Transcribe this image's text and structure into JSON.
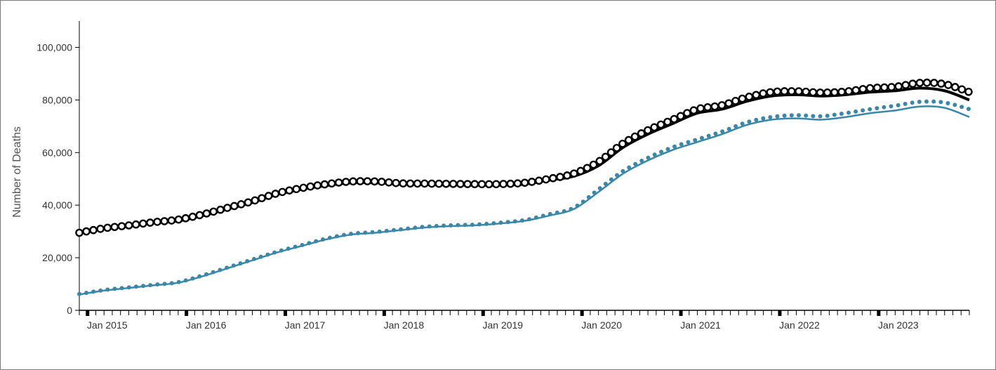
{
  "chart_data": {
    "type": "line",
    "title": "",
    "xlabel": "",
    "ylabel": "Number of Deaths",
    "ylim": [
      0,
      110000
    ],
    "xlim": [
      "2014-12",
      "2023-12"
    ],
    "y_ticks": [
      0,
      20000,
      40000,
      60000,
      80000,
      100000
    ],
    "y_tick_labels": [
      "0",
      "20,000",
      "40,000",
      "60,000",
      "80,000",
      "100,000"
    ],
    "x_ticks": [
      "2015-01",
      "2016-01",
      "2017-01",
      "2018-01",
      "2019-01",
      "2020-01",
      "2021-01",
      "2022-01",
      "2023-01"
    ],
    "x_tick_labels": [
      "Jan 2015",
      "Jan 2016",
      "Jan 2017",
      "Jan 2018",
      "Jan 2019",
      "Jan 2020",
      "Jan 2021",
      "Jan 2022",
      "Jan 2023"
    ],
    "grid": false,
    "legend": "none",
    "x": [
      "2014-12",
      "2015-03",
      "2015-06",
      "2015-09",
      "2015-12",
      "2016-03",
      "2016-06",
      "2016-09",
      "2016-12",
      "2017-03",
      "2017-06",
      "2017-09",
      "2017-12",
      "2018-03",
      "2018-06",
      "2018-09",
      "2018-12",
      "2019-03",
      "2019-06",
      "2019-09",
      "2019-12",
      "2020-03",
      "2020-06",
      "2020-09",
      "2020-12",
      "2021-03",
      "2021-06",
      "2021-09",
      "2021-12",
      "2022-03",
      "2022-06",
      "2022-09",
      "2022-12",
      "2023-03",
      "2023-06",
      "2023-09",
      "2023-12"
    ],
    "series": [
      {
        "color": "#000000",
        "style": "solid",
        "values": [
          29500,
          31000,
          32000,
          33200,
          34000,
          36000,
          38500,
          41000,
          44000,
          46000,
          47500,
          48500,
          48500,
          48000,
          47800,
          47700,
          47600,
          47600,
          48000,
          49500,
          51000,
          55000,
          62000,
          67000,
          71000,
          75000,
          76500,
          79500,
          81500,
          82000,
          81500,
          82000,
          83000,
          83500,
          84500,
          83500,
          80000
        ]
      },
      {
        "color": "#000000",
        "style": "open-circles",
        "values": [
          29500,
          31200,
          32300,
          33500,
          34500,
          36500,
          39000,
          41500,
          44500,
          46500,
          48000,
          49000,
          49000,
          48300,
          48200,
          48100,
          48000,
          48000,
          48500,
          50000,
          52000,
          56500,
          63500,
          68500,
          72500,
          76500,
          78000,
          81000,
          83000,
          83300,
          82800,
          83200,
          84500,
          85000,
          86500,
          86000,
          83000
        ]
      },
      {
        "color": "#3a87a8",
        "style": "solid",
        "values": [
          6000,
          7500,
          8500,
          9500,
          10500,
          13000,
          16000,
          19000,
          22000,
          24500,
          27000,
          28800,
          29500,
          30500,
          31500,
          32000,
          32300,
          33000,
          34000,
          36000,
          38500,
          45000,
          52000,
          57000,
          61000,
          64000,
          67000,
          70500,
          72500,
          73000,
          72500,
          73500,
          75000,
          76000,
          77500,
          77000,
          73500
        ]
      },
      {
        "color": "#3a87a8",
        "style": "dotted",
        "values": [
          6200,
          7700,
          8700,
          9700,
          10700,
          13300,
          16300,
          19300,
          22300,
          24800,
          27300,
          29100,
          29800,
          30800,
          31800,
          32300,
          32600,
          33300,
          34300,
          36500,
          39000,
          46000,
          53000,
          58000,
          62000,
          65000,
          68000,
          71500,
          73500,
          74200,
          73800,
          75000,
          76500,
          77800,
          79300,
          79000,
          76500
        ]
      }
    ]
  }
}
